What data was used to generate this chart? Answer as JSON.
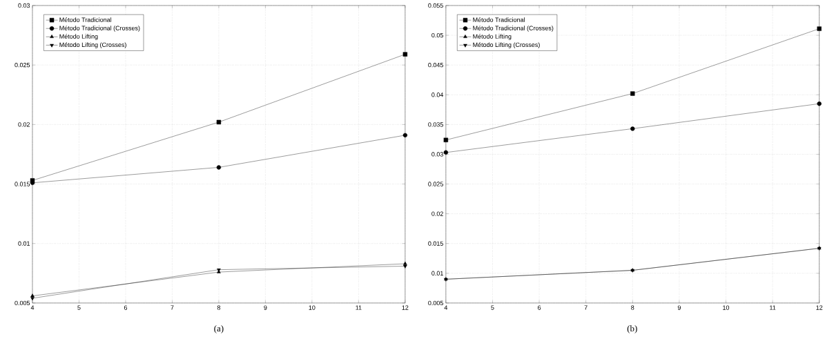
{
  "chart_data": [
    {
      "type": "line",
      "x": [
        4,
        8,
        12
      ],
      "xlim": [
        4,
        12
      ],
      "xticks": [
        4,
        5,
        6,
        7,
        8,
        9,
        10,
        11,
        12
      ],
      "ylim": [
        0.005,
        0.03
      ],
      "yticks": [
        0.005,
        0.01,
        0.015,
        0.02,
        0.025,
        0.03
      ],
      "grid": true,
      "legend": "top left",
      "annotations": [
        "(a)"
      ],
      "series": [
        {
          "name": "Método Tradicional",
          "color": "#000000",
          "marker": "square",
          "values": [
            0.0153,
            0.0202,
            0.0259
          ]
        },
        {
          "name": "Método Tradicional (Crosses)",
          "color": "#000000",
          "marker": "circle",
          "values": [
            0.0151,
            0.0164,
            0.0191
          ]
        },
        {
          "name": "Método Lifting",
          "color": "#000000",
          "marker": "triangle",
          "values": [
            0.0056,
            0.0076,
            0.0083
          ]
        },
        {
          "name": "Método Lifting (Crosses)",
          "color": "#000000",
          "marker": "triangle-down",
          "values": [
            0.0054,
            0.0078,
            0.0081
          ]
        }
      ]
    },
    {
      "type": "line",
      "x": [
        4,
        8,
        12
      ],
      "xlim": [
        4,
        12
      ],
      "xticks": [
        4,
        5,
        6,
        7,
        8,
        9,
        10,
        11,
        12
      ],
      "ylim": [
        0.005,
        0.055
      ],
      "yticks": [
        0.005,
        0.01,
        0.015,
        0.02,
        0.025,
        0.03,
        0.035,
        0.04,
        0.045,
        0.05,
        0.055
      ],
      "grid": true,
      "legend": "top left",
      "annotations": [
        "(b)"
      ],
      "series": [
        {
          "name": "Método Tradicional",
          "color": "#000000",
          "marker": "square",
          "values": [
            0.0324,
            0.0402,
            0.0511
          ]
        },
        {
          "name": "Método Tradicional (Crosses)",
          "color": "#000000",
          "marker": "circle",
          "values": [
            0.0303,
            0.0343,
            0.0385
          ]
        },
        {
          "name": "Método Lifting",
          "color": "#000000",
          "marker": "triangle",
          "values": [
            0.009,
            0.0105,
            0.0142
          ]
        },
        {
          "name": "Método Lifting (Crosses)",
          "color": "#000000",
          "marker": "triangle-down",
          "values": [
            0.009,
            0.0105,
            0.0142
          ]
        }
      ]
    }
  ]
}
